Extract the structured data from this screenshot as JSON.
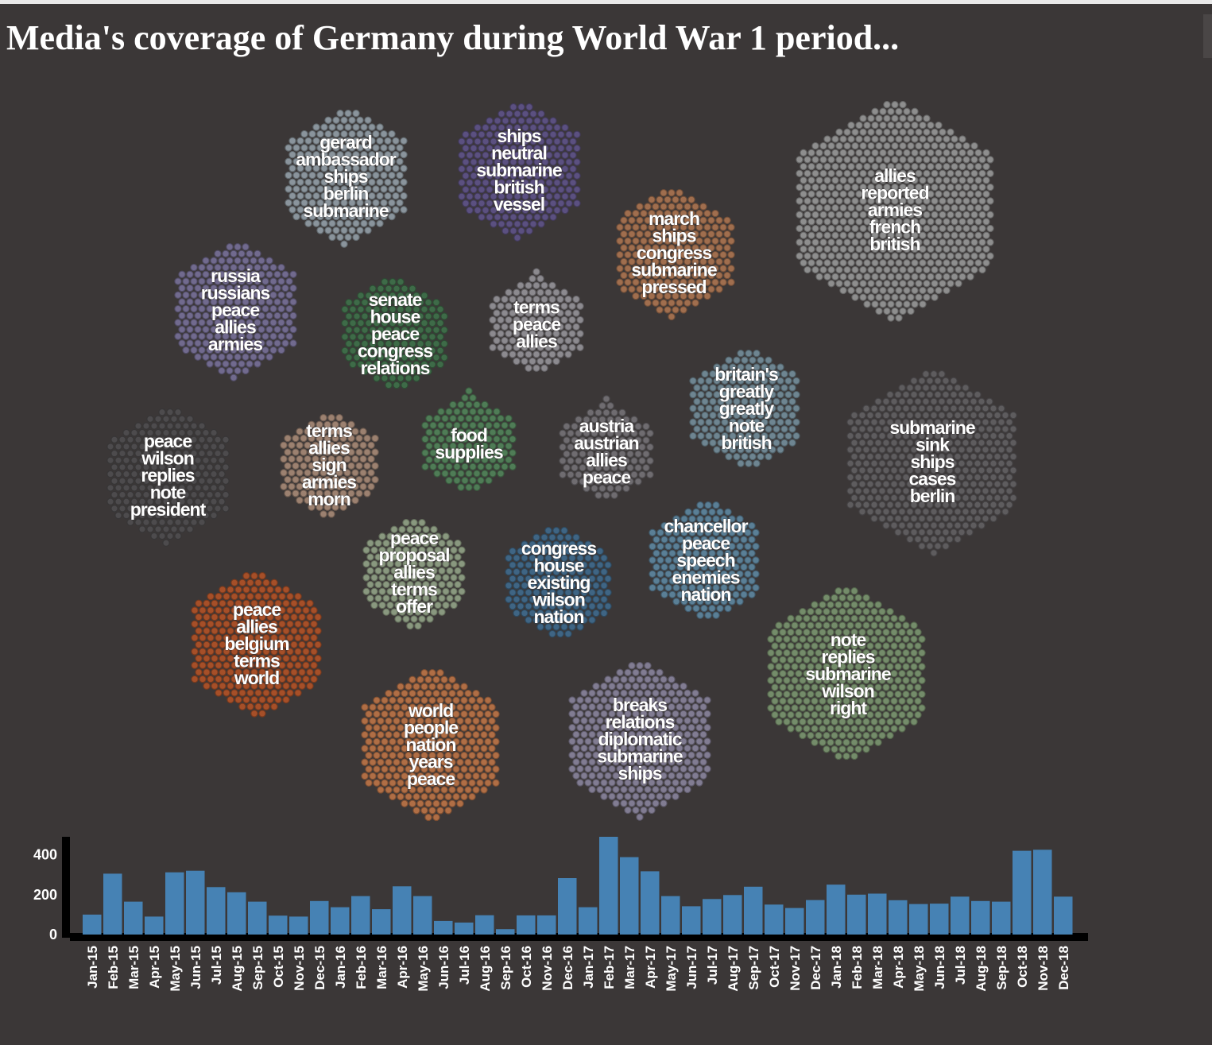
{
  "page": {
    "title": "Media's coverage of Germany during World War 1 period..."
  },
  "chart_data": [
    {
      "type": "hexbin-cluster",
      "clusters": [
        {
          "id": 1,
          "color": "#8a949c",
          "words": [
            "gerard",
            "ambassador",
            "ships",
            "berlin",
            "submarine"
          ]
        },
        {
          "id": 2,
          "color": "#5b5080",
          "words": [
            "ships",
            "neutral",
            "submarine",
            "british",
            "vessel"
          ]
        },
        {
          "id": 3,
          "color": "#a06e4e",
          "words": [
            "march",
            "ships",
            "congress",
            "submarine",
            "pressed"
          ]
        },
        {
          "id": 4,
          "color": "#8e8e8e",
          "words": [
            "allies",
            "reported",
            "armies",
            "french",
            "british"
          ]
        },
        {
          "id": 5,
          "color": "#716a8e",
          "words": [
            "russia",
            "russians",
            "peace",
            "allies",
            "armies"
          ]
        },
        {
          "id": 6,
          "color": "#3e6b48",
          "words": [
            "senate",
            "house",
            "peace",
            "congress",
            "relations"
          ]
        },
        {
          "id": 7,
          "color": "#8c8a8f",
          "words": [
            "terms",
            "peace",
            "allies"
          ]
        },
        {
          "id": 8,
          "color": "#6e8591",
          "words": [
            "britain's",
            "greatly",
            "greatly",
            "note",
            "british"
          ]
        },
        {
          "id": 9,
          "color": "#4d4b4d",
          "words": [
            "peace",
            "wilson",
            "replies",
            "note",
            "president"
          ]
        },
        {
          "id": 10,
          "color": "#9c8170",
          "words": [
            "terms",
            "allies",
            "sign",
            "armies",
            "morn"
          ]
        },
        {
          "id": 11,
          "color": "#4f7c56",
          "words": [
            "food",
            "supplies"
          ]
        },
        {
          "id": 12,
          "color": "#6f6c70",
          "words": [
            "austria",
            "austrian",
            "allies",
            "peace"
          ]
        },
        {
          "id": 13,
          "color": "#5e5c5e",
          "words": [
            "submarine",
            "sink",
            "ships",
            "cases",
            "berlin"
          ]
        },
        {
          "id": 14,
          "color": "#89987f",
          "words": [
            "peace",
            "proposal",
            "allies",
            "terms",
            "offer"
          ]
        },
        {
          "id": 15,
          "color": "#3f6584",
          "words": [
            "congress",
            "house",
            "existing",
            "wilson",
            "nation"
          ]
        },
        {
          "id": 16,
          "color": "#5a7f96",
          "words": [
            "chancellor",
            "peace",
            "speech",
            "enemies",
            "nation"
          ]
        },
        {
          "id": 17,
          "color": "#a64f28",
          "words": [
            "peace",
            "allies",
            "belgium",
            "terms",
            "world"
          ]
        },
        {
          "id": 18,
          "color": "#b06e45",
          "words": [
            "world",
            "people",
            "nation",
            "years",
            "peace"
          ]
        },
        {
          "id": 19,
          "color": "#817c92",
          "words": [
            "breaks",
            "relations",
            "diplomatic",
            "submarine",
            "ships"
          ]
        },
        {
          "id": 20,
          "color": "#748c6a",
          "words": [
            "note",
            "replies",
            "submarine",
            "wilson",
            "right"
          ]
        }
      ]
    },
    {
      "type": "bar",
      "bar_color": "#4682b4",
      "ylim": [
        0,
        490
      ],
      "yticks": [
        "0",
        "200",
        "400"
      ],
      "categories": [
        "Jan-15",
        "Feb-15",
        "Mar-15",
        "Apr-15",
        "May-15",
        "Jun-15",
        "Jul-15",
        "Aug-15",
        "Sep-15",
        "Oct-15",
        "Nov-15",
        "Dec-15",
        "Jan-16",
        "Feb-16",
        "Mar-16",
        "Apr-16",
        "May-16",
        "Jun-16",
        "Jul-16",
        "Aug-16",
        "Sep-16",
        "Oct-16",
        "Nov-16",
        "Dec-16",
        "Jan-17",
        "Feb-17",
        "Mar-17",
        "Apr-17",
        "May-17",
        "Jun-17",
        "Jul-17",
        "Aug-17",
        "Sep-17",
        "Oct-17",
        "Nov-17",
        "Dec-17",
        "Jan-18",
        "Feb-18",
        "Mar-18",
        "Apr-18",
        "May-18",
        "Jun-18",
        "Jul-18",
        "Aug-18",
        "Sep-18",
        "Oct-18",
        "Nov-18",
        "Dec-18"
      ],
      "values": [
        100,
        305,
        165,
        90,
        312,
        320,
        238,
        212,
        165,
        95,
        90,
        168,
        137,
        193,
        127,
        242,
        193,
        68,
        60,
        97,
        27,
        96,
        96,
        283,
        137,
        490,
        388,
        317,
        193,
        142,
        178,
        198,
        240,
        150,
        133,
        173,
        250,
        200,
        205,
        172,
        153,
        155,
        190,
        168,
        165,
        420,
        425,
        190
      ]
    }
  ]
}
